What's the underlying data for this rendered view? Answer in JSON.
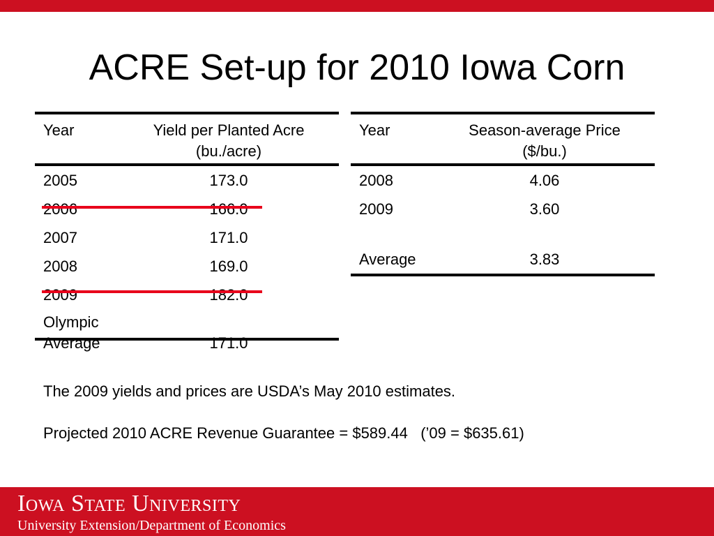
{
  "title": "ACRE Set-up for 2010 Iowa Corn",
  "colors": {
    "brand_red": "#cc1021",
    "strike_red": "#e8001b"
  },
  "yield_table": {
    "header_year": "Year",
    "header_value": "Yield per Planted Acre (bu./acre)",
    "rows": [
      {
        "year": "2005",
        "value": "173.0",
        "struck": false
      },
      {
        "year": "2006",
        "value": "166.0",
        "struck": true
      },
      {
        "year": "2007",
        "value": "171.0",
        "struck": false
      },
      {
        "year": "2008",
        "value": "169.0",
        "struck": false
      },
      {
        "year": "2009",
        "value": "182.0",
        "struck": true
      }
    ],
    "olympic_label": "Olympic Average",
    "olympic_value": "171.0"
  },
  "price_table": {
    "header_year": "Year",
    "header_value": "Season-average Price ($/bu.)",
    "rows": [
      {
        "year": "2008",
        "value": "4.06"
      },
      {
        "year": "2009",
        "value": "3.60"
      }
    ],
    "average_label": "Average",
    "average_value": "3.83"
  },
  "notes": {
    "line1": "The 2009 yields and prices are USDA’s May 2010 estimates.",
    "line2": "Projected 2010 ACRE Revenue Guarantee = $589.44   (’09 = $635.61)"
  },
  "footer": {
    "institution": "Iowa State University",
    "department": "University Extension/Department of Economics"
  }
}
